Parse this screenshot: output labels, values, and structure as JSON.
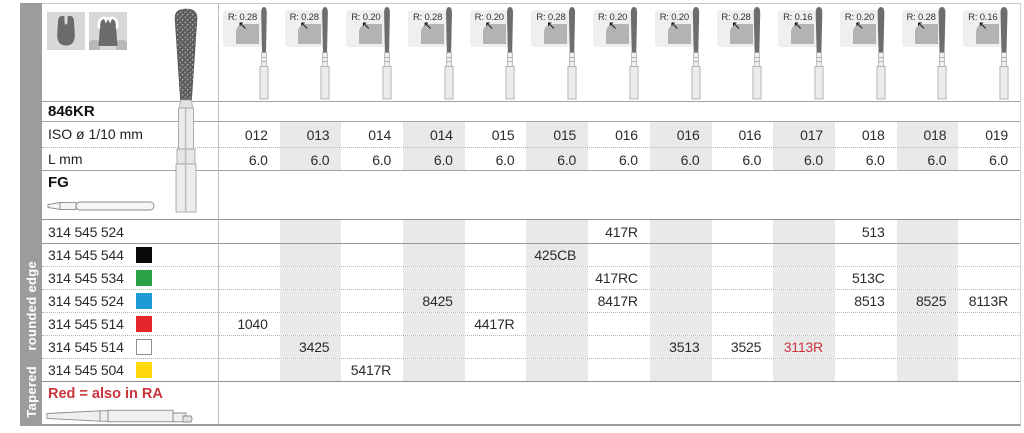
{
  "sidebar": {
    "category": "Tapered",
    "subcategory": "rounded edge"
  },
  "header": {
    "product_name": "846KR",
    "iso_row_label": "ISO ø 1/10 mm",
    "length_row_label": "L mm",
    "shank_type_label": "FG"
  },
  "columns": [
    {
      "radius": "R: 0.28",
      "iso": "012",
      "length": "6.0"
    },
    {
      "radius": "R: 0.28",
      "iso": "013",
      "length": "6.0"
    },
    {
      "radius": "R: 0.20",
      "iso": "014",
      "length": "6.0"
    },
    {
      "radius": "R: 0.28",
      "iso": "014",
      "length": "6.0"
    },
    {
      "radius": "R: 0.20",
      "iso": "015",
      "length": "6.0"
    },
    {
      "radius": "R: 0.28",
      "iso": "015",
      "length": "6.0"
    },
    {
      "radius": "R: 0.20",
      "iso": "016",
      "length": "6.0"
    },
    {
      "radius": "R: 0.20",
      "iso": "016",
      "length": "6.0"
    },
    {
      "radius": "R: 0.28",
      "iso": "016",
      "length": "6.0"
    },
    {
      "radius": "R: 0.16",
      "iso": "017",
      "length": "6.0"
    },
    {
      "radius": "R: 0.20",
      "iso": "018",
      "length": "6.0"
    },
    {
      "radius": "R: 0.28",
      "iso": "018",
      "length": "6.0"
    },
    {
      "radius": "R: 0.16",
      "iso": "019",
      "length": "6.0"
    }
  ],
  "order_rows": [
    {
      "code": "314 545 524",
      "grit_color": "",
      "cells": [
        "",
        "",
        "",
        "",
        "",
        "",
        "417R",
        "",
        "",
        "",
        "513",
        "",
        ""
      ]
    },
    {
      "code": "314 545 544",
      "grit_color": "#0a0a0a",
      "cells": [
        "",
        "",
        "",
        "",
        "",
        "425CB",
        "",
        "",
        "",
        "",
        "",
        "",
        ""
      ]
    },
    {
      "code": "314 545 534",
      "grit_color": "#2aa147",
      "cells": [
        "",
        "",
        "",
        "",
        "",
        "",
        "417RC",
        "",
        "",
        "",
        "513C",
        "",
        ""
      ]
    },
    {
      "code": "314 545 524",
      "grit_color": "#1e9bd7",
      "cells": [
        "",
        "",
        "",
        "8425",
        "",
        "",
        "8417R",
        "",
        "",
        "",
        "8513",
        "8525",
        "8113R"
      ]
    },
    {
      "code": "314 545 514",
      "grit_color": "#e42529",
      "cells": [
        "1040",
        "",
        "",
        "",
        "4417R",
        "",
        "",
        "",
        "",
        "",
        "",
        "",
        ""
      ]
    },
    {
      "code": "314 545 514",
      "grit_color": "#ffffff",
      "cells": [
        "",
        "3425",
        "",
        "",
        "",
        "",
        "",
        "3513",
        "3525",
        "3113R",
        "",
        "",
        ""
      ],
      "red_cells": [
        9
      ]
    },
    {
      "code": "314 545 504",
      "grit_color": "#ffd80e",
      "cells": [
        "",
        "",
        "5417R",
        "",
        "",
        "",
        "",
        "",
        "",
        "",
        "",
        "",
        ""
      ]
    }
  ],
  "footnote": "Red = also in RA",
  "colors": {
    "accent_red": "#c9353d",
    "stripe_gray": "#e9e9e9",
    "sidebar_gray": "#9c9c9c"
  }
}
